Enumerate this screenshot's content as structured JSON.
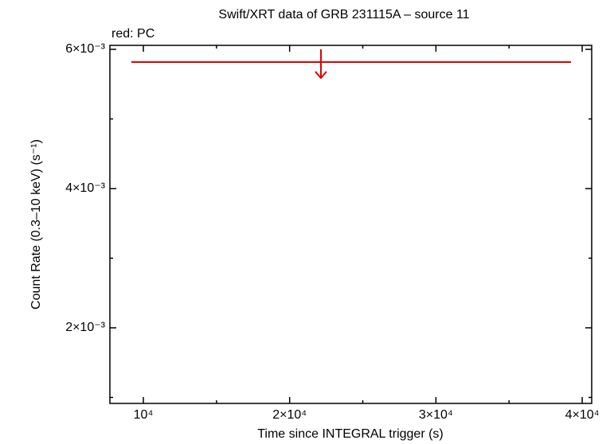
{
  "chart_data": {
    "type": "upper_limit",
    "title": "Swift/XRT data of GRB 231115A – source 11",
    "legend_text": "red: PC",
    "x_label": "Time since INTEGRAL trigger (s)",
    "y_label": "Count Rate (0.3–10 keV) (s⁻¹)",
    "xlim": [
      7714,
      40650
    ],
    "ylim": [
      0.000914,
      0.006057
    ],
    "xticks": [
      {
        "value": 10000,
        "label": "10⁴"
      },
      {
        "value": 20000,
        "label": "2×10⁴"
      },
      {
        "value": 30000,
        "label": "3×10⁴"
      },
      {
        "value": 40000,
        "label": "4×10⁴"
      }
    ],
    "yticks": [
      {
        "value": 0.002,
        "label": "2×10⁻³"
      },
      {
        "value": 0.004,
        "label": "4×10⁻³"
      },
      {
        "value": 0.006,
        "label": "6×10⁻³"
      }
    ],
    "xminor_ticks": [
      15000,
      25000,
      35000
    ],
    "yminor_ticks": [
      0.001,
      0.003,
      0.005
    ],
    "series": [
      {
        "color": "#e00000",
        "x": [
          22140
        ],
        "x_start": [
          9183
        ],
        "x_end": [
          39238
        ],
        "values": [
          0.005817
        ]
      }
    ]
  }
}
